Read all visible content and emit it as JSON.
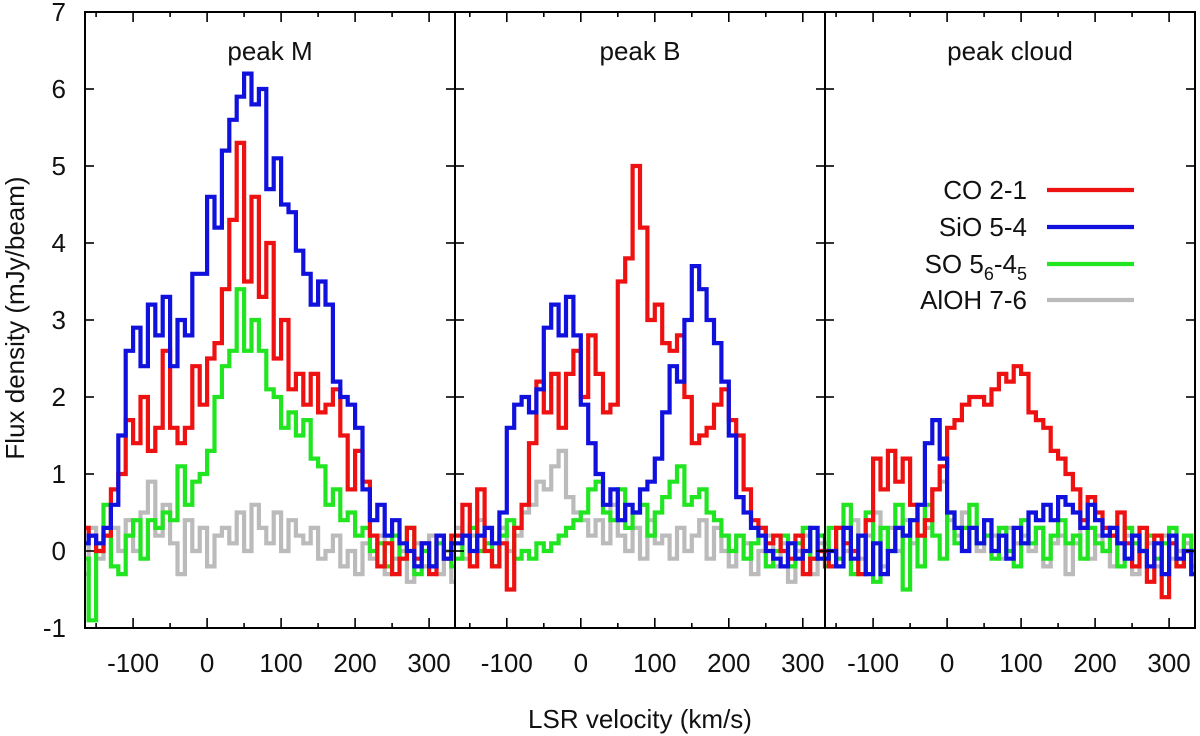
{
  "chart_data": {
    "type": "line",
    "style": "step histogram",
    "xlabel": "LSR velocity (km/s)",
    "ylabel": "Flux density (mJy/beam)",
    "ylim": [
      -1,
      7
    ],
    "y_ticks": [
      "-1",
      "0",
      "1",
      "2",
      "3",
      "4",
      "5",
      "6",
      "7"
    ],
    "x_ticks": [
      "-100",
      "0",
      "100",
      "200",
      "300"
    ],
    "legend": {
      "placement": "right of peak cloud panel",
      "entries": [
        {
          "series": "CO 2-1",
          "label": "CO 2-1",
          "color": "#ee1111"
        },
        {
          "series": "SiO 5-4",
          "label": "SiO 5-4",
          "color": "#1111dd"
        },
        {
          "series": "SO 5_6-4_5",
          "label_main": "SO 5",
          "label_sub1": "6",
          "label_mid": "-4",
          "label_sub2": "5",
          "color": "#22e522"
        },
        {
          "series": "AlOH 7-6",
          "label": "AlOH 7-6",
          "color": "#bbbbbb"
        }
      ]
    },
    "panels": [
      {
        "title": "peak M",
        "xlim": [
          -165,
          335
        ],
        "series": [
          {
            "name": "CO 2-1",
            "color": "#ee1111",
            "x_start": -170,
            "step": 10,
            "values": [
              0.3,
              0.2,
              0.0,
              0.2,
              0.8,
              1.0,
              1.7,
              1.4,
              2.0,
              1.3,
              1.6,
              2.6,
              1.6,
              1.4,
              1.6,
              2.4,
              1.9,
              2.5,
              2.7,
              3.4,
              4.3,
              5.3,
              3.5,
              4.6,
              3.3,
              4.0,
              2.5,
              3.0,
              2.1,
              2.3,
              1.9,
              2.3,
              1.8,
              1.9,
              2.1,
              1.5,
              0.8,
              1.3,
              0.9,
              0.2,
              -0.2,
              0.1,
              -0.3,
              -0.1,
              0.3,
              -0.1,
              0.1,
              -0.3,
              0.2,
              -0.1,
              0.2
            ]
          },
          {
            "name": "SiO 5-4",
            "color": "#1111dd",
            "x_start": -170,
            "step": 10,
            "values": [
              0.1,
              0.2,
              0.1,
              0.3,
              0.6,
              1.5,
              2.6,
              2.9,
              2.4,
              3.2,
              2.8,
              3.3,
              2.4,
              3.0,
              2.8,
              3.6,
              3.6,
              4.6,
              4.2,
              5.2,
              5.6,
              5.9,
              6.2,
              5.8,
              6.0,
              4.7,
              5.1,
              4.5,
              4.4,
              3.9,
              3.6,
              3.2,
              3.5,
              3.2,
              2.2,
              2.0,
              1.9,
              1.6,
              0.8,
              0.4,
              0.6,
              0.2,
              0.4,
              0.1,
              0.0,
              -0.2,
              0.1,
              -0.2,
              0.2,
              -0.1,
              0.1
            ]
          },
          {
            "name": "SO 5_6-4_5",
            "color": "#22e522",
            "x_start": -170,
            "step": 10,
            "values": [
              -0.1,
              -0.9,
              0.0,
              0.6,
              -0.2,
              -0.3,
              0.2,
              0.4,
              -0.1,
              0.4,
              0.3,
              0.5,
              0.4,
              1.1,
              0.6,
              0.9,
              1.0,
              1.3,
              2.0,
              2.4,
              2.6,
              3.4,
              2.6,
              3.0,
              2.6,
              2.1,
              2.0,
              1.6,
              1.8,
              1.5,
              1.7,
              1.2,
              1.1,
              0.6,
              0.8,
              0.4,
              0.5,
              0.2,
              0.3,
              0.0,
              0.1,
              -0.2,
              0.2,
              -0.1,
              0.3,
              -0.3,
              0.0,
              -0.2,
              0.1,
              -0.1,
              -0.2
            ]
          },
          {
            "name": "AlOH 7-6",
            "color": "#bbbbbb",
            "x_start": -170,
            "step": 10,
            "values": [
              -0.3,
              0.3,
              -0.1,
              0.2,
              0.3,
              0.0,
              0.4,
              0.0,
              0.5,
              0.9,
              0.2,
              0.6,
              0.1,
              -0.3,
              0.4,
              0.0,
              0.3,
              -0.2,
              0.2,
              0.3,
              0.1,
              0.5,
              0.0,
              0.6,
              0.3,
              0.1,
              0.5,
              0.0,
              0.4,
              0.2,
              0.1,
              0.3,
              -0.1,
              0.0,
              0.2,
              -0.2,
              0.0,
              -0.3,
              0.1,
              -0.1,
              0.2,
              -0.3,
              -0.1,
              0.0,
              -0.4,
              0.1,
              -0.2,
              0.2,
              -0.3,
              0.0,
              -0.4
            ]
          }
        ]
      },
      {
        "title": "peak B",
        "xlim": [
          -170,
          330
        ],
        "series": [
          {
            "name": "CO 2-1",
            "color": "#ee1111",
            "x_start": -170,
            "step": 10,
            "values": [
              0.2,
              0.6,
              -0.2,
              0.8,
              0.0,
              -0.2,
              0.1,
              -0.5,
              0.3,
              0.6,
              1.4,
              2.2,
              1.8,
              2.3,
              1.6,
              2.3,
              2.6,
              2.0,
              2.8,
              2.3,
              1.8,
              1.9,
              3.5,
              3.8,
              5.0,
              4.2,
              3.0,
              3.2,
              2.7,
              2.6,
              2.8,
              2.0,
              1.4,
              1.5,
              1.6,
              1.9,
              2.1,
              1.7,
              1.5,
              0.8,
              0.4,
              0.3,
              0.1,
              0.2,
              0.0,
              -0.1,
              0.2,
              -0.3,
              -0.1,
              0.0,
              -0.2
            ]
          },
          {
            "name": "SiO 5-4",
            "color": "#1111dd",
            "x_start": -170,
            "step": 10,
            "values": [
              0.1,
              0.2,
              0.0,
              0.2,
              0.3,
              0.1,
              0.5,
              1.6,
              1.9,
              2.0,
              1.8,
              2.1,
              2.9,
              3.2,
              2.8,
              3.3,
              2.8,
              1.9,
              1.4,
              1.0,
              0.6,
              0.8,
              0.4,
              0.6,
              0.5,
              0.8,
              0.9,
              1.2,
              1.8,
              2.4,
              2.2,
              3.0,
              3.7,
              3.4,
              3.0,
              2.7,
              2.2,
              1.5,
              0.7,
              0.5,
              0.3,
              0.2,
              0.0,
              -0.1,
              -0.2,
              0.1,
              -0.1,
              0.0,
              0.3,
              -0.1,
              0.2
            ]
          },
          {
            "name": "SO 5_6-4_5",
            "color": "#22e522",
            "x_start": -170,
            "step": 10,
            "values": [
              -0.1,
              0.2,
              0.3,
              0.0,
              0.1,
              -0.2,
              0.2,
              0.4,
              -0.1,
              0.0,
              -0.1,
              0.1,
              0.0,
              0.1,
              0.2,
              0.3,
              0.4,
              0.5,
              0.8,
              0.9,
              0.5,
              0.4,
              0.8,
              0.3,
              0.5,
              0.6,
              0.2,
              0.5,
              0.7,
              0.9,
              1.1,
              0.6,
              0.7,
              0.8,
              0.5,
              0.4,
              0.2,
              0.0,
              0.2,
              -0.1,
              0.1,
              0.3,
              -0.2,
              0.0,
              0.2,
              -0.2,
              0.1,
              0.3,
              -0.1,
              0.2,
              0.0
            ]
          },
          {
            "name": "AlOH 7-6",
            "color": "#bbbbbb",
            "x_start": -170,
            "step": 10,
            "values": [
              0.3,
              -0.1,
              0.2,
              0.4,
              0.1,
              -0.2,
              0.3,
              0.0,
              0.2,
              0.5,
              0.6,
              0.9,
              0.8,
              1.1,
              1.3,
              0.7,
              0.5,
              0.4,
              0.2,
              0.4,
              0.1,
              0.6,
              0.2,
              0.0,
              0.3,
              -0.1,
              0.4,
              0.1,
              0.2,
              -0.1,
              0.3,
              0.0,
              0.2,
              0.4,
              -0.1,
              0.3,
              0.0,
              -0.2,
              0.2,
              0.1,
              -0.3,
              0.0,
              0.2,
              -0.2,
              0.1,
              -0.4,
              0.0,
              0.2,
              -0.3,
              0.1,
              -0.1
            ]
          }
        ]
      },
      {
        "title": "peak cloud",
        "xlim": [
          -165,
          335
        ],
        "series": [
          {
            "name": "CO 2-1",
            "color": "#ee1111",
            "x_start": -170,
            "step": 10,
            "values": [
              0.0,
              -0.2,
              0.3,
              0.1,
              0.0,
              -0.3,
              0.4,
              1.2,
              0.8,
              1.3,
              0.9,
              1.2,
              0.6,
              0.2,
              0.4,
              0.8,
              1.1,
              1.6,
              1.7,
              1.9,
              2.0,
              2.0,
              1.9,
              2.1,
              2.3,
              2.2,
              2.4,
              2.3,
              1.8,
              1.7,
              1.6,
              1.3,
              1.2,
              1.0,
              0.8,
              0.4,
              0.7,
              0.5,
              0.3,
              0.2,
              0.5,
              0.1,
              -0.2,
              0.3,
              -0.4,
              0.2,
              -0.6,
              0.1,
              -0.2,
              0.0,
              -0.3
            ]
          },
          {
            "name": "SiO 5-4",
            "color": "#1111dd",
            "x_start": -170,
            "step": 10,
            "values": [
              -0.1,
              0.0,
              -0.2,
              0.3,
              -0.1,
              0.2,
              -0.3,
              0.1,
              -0.3,
              0.0,
              0.3,
              0.2,
              0.4,
              0.6,
              1.4,
              1.7,
              1.2,
              0.5,
              0.3,
              0.0,
              0.3,
              0.1,
              0.4,
              0.0,
              0.2,
              -0.1,
              0.3,
              0.1,
              0.5,
              0.4,
              0.6,
              0.4,
              0.7,
              0.6,
              0.5,
              0.3,
              0.6,
              0.4,
              0.2,
              0.3,
              0.1,
              -0.1,
              0.2,
              0.0,
              -0.2,
              0.1,
              -0.3,
              0.2,
              -0.1,
              0.0,
              -0.3
            ]
          },
          {
            "name": "SO 5_6-4_5",
            "color": "#22e522",
            "x_start": -170,
            "step": 10,
            "values": [
              -0.2,
              0.3,
              -0.1,
              0.6,
              -0.3,
              0.2,
              0.5,
              -0.4,
              0.3,
              0.0,
              0.6,
              -0.5,
              0.4,
              -0.2,
              0.6,
              0.2,
              -0.1,
              0.5,
              0.1,
              0.3,
              0.6,
              0.1,
              0.2,
              -0.1,
              0.3,
              0.0,
              -0.2,
              0.4,
              0.1,
              0.3,
              -0.1,
              0.2,
              0.4,
              0.1,
              0.2,
              -0.1,
              0.3,
              0.1,
              0.0,
              0.2,
              -0.2,
              0.3,
              0.1,
              0.0,
              0.2,
              -0.1,
              0.1,
              0.3,
              -0.2,
              0.2,
              0.0
            ]
          },
          {
            "name": "AlOH 7-6",
            "color": "#bbbbbb",
            "x_start": -170,
            "step": 10,
            "values": [
              0.1,
              -0.2,
              0.3,
              0.0,
              0.4,
              -0.1,
              0.2,
              0.5,
              -0.2,
              0.3,
              0.0,
              0.4,
              0.1,
              0.6,
              0.3,
              0.8,
              0.9,
              0.4,
              0.2,
              0.5,
              0.3,
              0.0,
              0.4,
              0.2,
              -0.1,
              0.3,
              0.1,
              0.2,
              0.0,
              0.3,
              -0.2,
              0.1,
              0.2,
              -0.3,
              0.1,
              0.3,
              -0.1,
              0.2,
              0.0,
              -0.2,
              0.1,
              0.2,
              -0.3,
              0.0,
              0.1,
              -0.2,
              0.2,
              -0.1,
              0.0,
              0.1,
              -0.2
            ]
          }
        ]
      }
    ]
  }
}
